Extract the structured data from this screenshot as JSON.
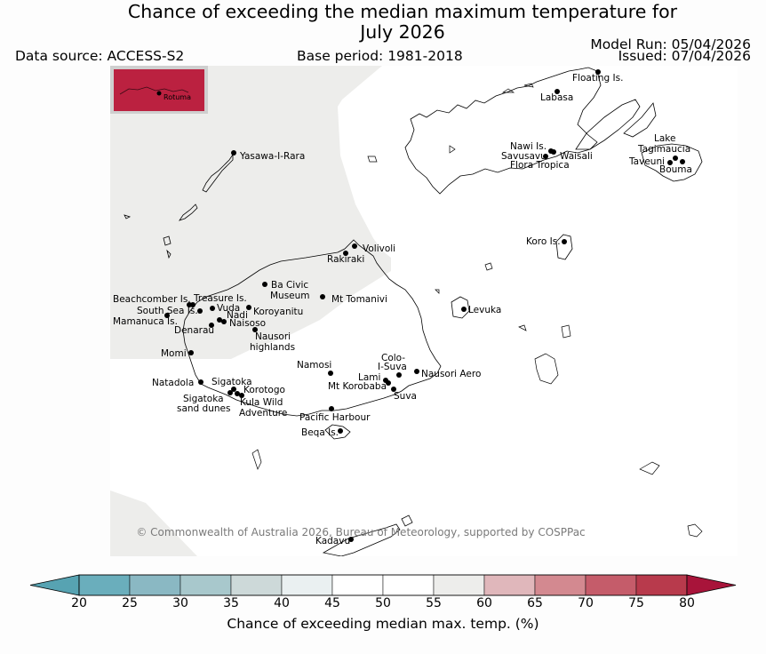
{
  "header": {
    "title_line1": "Chance of exceeding the median maximum temperature for",
    "title_line2": "July 2026",
    "data_source": "Data source: ACCESS-S2",
    "base_period": "Base period: 1981-2018",
    "model_run": "Model Run: 05/04/2026",
    "issued": "Issued: 07/04/2026"
  },
  "map": {
    "copyright": "© Commonwealth of Australia 2026, Bureau of Meteorology, supported by COSPPac",
    "inset_label": "Rotuma",
    "colors": {
      "water": "#ffffff",
      "probability_45_55": "#ededeb",
      "rotuma_fill": "#bb2140",
      "coast": "#000000"
    },
    "places": [
      {
        "name": "Floating Is."
      },
      {
        "name": "Labasa"
      },
      {
        "name": "Yasawa-I-Rara"
      },
      {
        "name": "Nawi Is."
      },
      {
        "name": "Savusavu"
      },
      {
        "name": "Waisali"
      },
      {
        "name": "Flora Tropica"
      },
      {
        "name": "Lake"
      },
      {
        "name": "Tagimaucia"
      },
      {
        "name": "Taveuni"
      },
      {
        "name": "Bouma"
      },
      {
        "name": "Volivoli"
      },
      {
        "name": "Rakiraki"
      },
      {
        "name": "Koro Is."
      },
      {
        "name": "Ba Civic"
      },
      {
        "name": "Museum"
      },
      {
        "name": "Mt Tomanivi"
      },
      {
        "name": "Beachcomber Is."
      },
      {
        "name": "Treasure Is."
      },
      {
        "name": "South Sea Is."
      },
      {
        "name": "Vuda"
      },
      {
        "name": "Koroyanitu"
      },
      {
        "name": "Nadi"
      },
      {
        "name": "Mamanuca Is."
      },
      {
        "name": "Naisoso"
      },
      {
        "name": "Denarau"
      },
      {
        "name": "Nausori"
      },
      {
        "name": "highlands"
      },
      {
        "name": "Levuka"
      },
      {
        "name": "Momi"
      },
      {
        "name": "Namosi"
      },
      {
        "name": "Colo-"
      },
      {
        "name": "I-Suva"
      },
      {
        "name": "Nausori Aero"
      },
      {
        "name": "Lami"
      },
      {
        "name": "Mt Korobaba"
      },
      {
        "name": "Suva"
      },
      {
        "name": "Natadola"
      },
      {
        "name": "Sigatoka"
      },
      {
        "name": "Korotogo"
      },
      {
        "name": "Sigatoka"
      },
      {
        "name": "sand dunes"
      },
      {
        "name": "Kula Wild"
      },
      {
        "name": "Adventure"
      },
      {
        "name": "Pacific Harbour"
      },
      {
        "name": "Beqa Is."
      },
      {
        "name": "Kadavu"
      }
    ]
  },
  "colorbar": {
    "label": "Chance of exceeding median max. temp. (%)",
    "ticks": [
      "20",
      "25",
      "30",
      "35",
      "40",
      "45",
      "50",
      "55",
      "60",
      "65",
      "70",
      "75",
      "80"
    ],
    "colors": [
      "#6aaebc",
      "#8ab8c3",
      "#a8c8cc",
      "#cdd9d9",
      "#eaf0f1",
      "#ffffff",
      "#ffffff",
      "#ededeb",
      "#e0b7bb",
      "#d38990",
      "#c55c6a",
      "#b83a4c"
    ],
    "under_color": "#57a3b2",
    "over_color": "#a8143a"
  }
}
